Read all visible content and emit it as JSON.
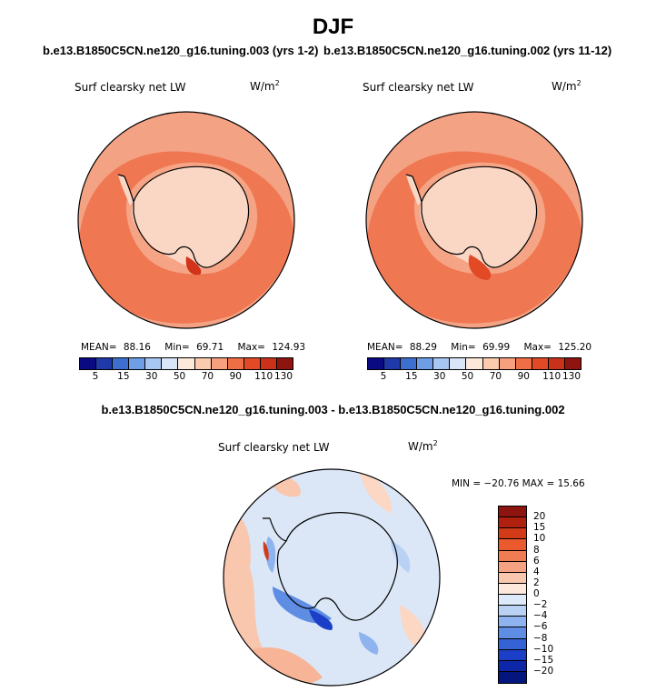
{
  "header": {
    "title": "DJF",
    "case_left": "b.e13.B1850C5CN.ne120_g16.tuning.003 (yrs 1-2)",
    "case_right": "b.e13.B1850C5CN.ne120_g16.tuning.002 (yrs 11-12)",
    "diff_title": "b.e13.B1850C5CN.ne120_g16.tuning.003 - b.e13.B1850C5CN.ne120_g16.tuning.002"
  },
  "panels": {
    "left": {
      "variable": "Surf clearsky net LW",
      "unit": "W/m",
      "unit_exp": "2",
      "mean_label": "MEAN=",
      "mean": "88.16",
      "min_label": "Min=",
      "min": "69.71",
      "max_label": "Max=",
      "max": "124.93"
    },
    "right": {
      "variable": "Surf clearsky net LW",
      "unit": "W/m",
      "unit_exp": "2",
      "mean_label": "MEAN=",
      "mean": "88.29",
      "min_label": "Min=",
      "min": "69.99",
      "max_label": "Max=",
      "max": "125.20"
    },
    "diff": {
      "variable": "Surf clearsky net LW",
      "unit": "W/m",
      "unit_exp": "2",
      "minmax": "MIN = −20.76 MAX =  15.66"
    }
  },
  "colorbar_abs": {
    "colors": [
      "#0a0a82",
      "#1f3aa8",
      "#3d6fd0",
      "#6f9ee6",
      "#a7c7f2",
      "#d8e6f8",
      "#fde9da",
      "#fbcbb0",
      "#f6a07e",
      "#ef6e45",
      "#e24a26",
      "#c9311a",
      "#8e1410"
    ],
    "ticks": [
      "5",
      "15",
      "30",
      "50",
      "70",
      "90",
      "110",
      "130"
    ]
  },
  "colorbar_diff": {
    "colors": [
      "#8e1410",
      "#b0200f",
      "#d23a18",
      "#ea5a2e",
      "#f07c53",
      "#f5a283",
      "#f9c6ae",
      "#fde8dc",
      "#ddeafa",
      "#b9d2f4",
      "#8fb3ee",
      "#5f8de4",
      "#3563d6",
      "#1b3fc6",
      "#0d27a8",
      "#05157e"
    ],
    "ticks": [
      "20",
      "15",
      "10",
      "8",
      "6",
      "4",
      "2",
      "0",
      "−2",
      "−4",
      "−6",
      "−8",
      "−10",
      "−15",
      "−20"
    ]
  },
  "chart_data": [
    {
      "type": "heatmap",
      "projection": "south polar stereographic",
      "title": "Surf clearsky net LW",
      "units": "W/m2",
      "case": "b.e13.B1850C5CN.ne120_g16.tuning.003 (yrs 1-2)",
      "mean": 88.16,
      "min": 69.71,
      "max": 124.93,
      "levels": [
        5,
        15,
        30,
        50,
        70,
        90,
        110,
        130
      ]
    },
    {
      "type": "heatmap",
      "projection": "south polar stereographic",
      "title": "Surf clearsky net LW",
      "units": "W/m2",
      "case": "b.e13.B1850C5CN.ne120_g16.tuning.002 (yrs 11-12)",
      "mean": 88.29,
      "min": 69.99,
      "max": 125.2,
      "levels": [
        5,
        15,
        30,
        50,
        70,
        90,
        110,
        130
      ]
    },
    {
      "type": "heatmap",
      "projection": "south polar stereographic",
      "title": "Surf clearsky net LW",
      "units": "W/m2",
      "case": "b.e13.B1850C5CN.ne120_g16.tuning.003 - b.e13.B1850C5CN.ne120_g16.tuning.002",
      "min": -20.76,
      "max": 15.66,
      "levels": [
        20,
        15,
        10,
        8,
        6,
        4,
        2,
        0,
        -2,
        -4,
        -6,
        -8,
        -10,
        -15,
        -20
      ]
    }
  ]
}
